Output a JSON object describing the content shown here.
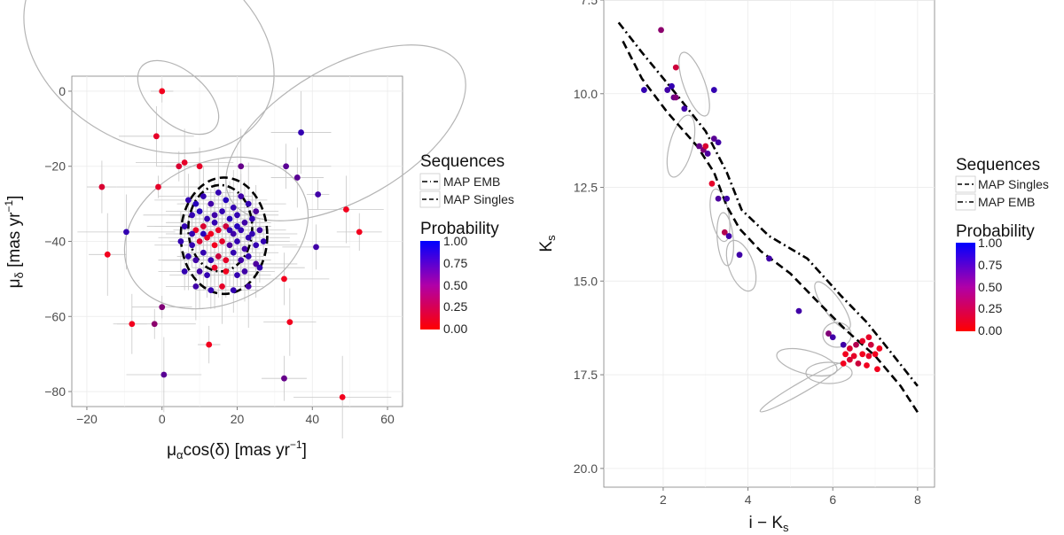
{
  "chart_data": [
    {
      "type": "scatter",
      "xlabel": "μαcos(δ) [mas yr−1]",
      "ylabel": "μδ [mas yr−1]",
      "xlim": [
        -24,
        64
      ],
      "ylim": [
        -84,
        4
      ],
      "x_ticks": [
        -20,
        0,
        20,
        40,
        60
      ],
      "y_ticks": [
        0,
        -20,
        -40,
        -60,
        -80
      ],
      "x_tick_labels": [
        "−20",
        "0",
        "20",
        "40",
        "60"
      ],
      "y_tick_labels": [
        "0",
        "−20",
        "−40",
        "−60",
        "−80"
      ],
      "grid": true,
      "legend_sequences": {
        "title": "Sequences",
        "items": [
          "MAP EMB",
          "MAP Singles"
        ]
      },
      "legend_probability": {
        "title": "Probability",
        "labels": [
          "1.00",
          "0.75",
          "0.50",
          "0.25",
          "0.00"
        ],
        "low_color": "#ff0000",
        "high_color": "#0000ff"
      },
      "sequences": [
        {
          "name": "MAP EMB",
          "cx": 15.5,
          "cy": -36.5,
          "rx": 8.5,
          "ry": 11.5
        },
        {
          "name": "MAP Singles",
          "cx": 16.5,
          "cy": -38.5,
          "rx": 11.5,
          "ry": 15.5
        }
      ],
      "points": [
        {
          "x": 0,
          "y": 0,
          "p": 0.05
        },
        {
          "x": -1.5,
          "y": -12,
          "p": 0.1
        },
        {
          "x": 4.5,
          "y": -20,
          "p": 0.15
        },
        {
          "x": 6,
          "y": -19,
          "p": 0.1
        },
        {
          "x": 10,
          "y": -20,
          "p": 0.1
        },
        {
          "x": 21,
          "y": -20,
          "p": 0.6
        },
        {
          "x": 33,
          "y": -20,
          "p": 0.65
        },
        {
          "x": 37,
          "y": -11,
          "p": 0.8
        },
        {
          "x": -16,
          "y": -25.5,
          "p": 0.15
        },
        {
          "x": -1,
          "y": -25.5,
          "p": 0.1
        },
        {
          "x": 36,
          "y": -23,
          "p": 0.65
        },
        {
          "x": 41.5,
          "y": -27.5,
          "p": 0.75
        },
        {
          "x": 49,
          "y": -31.5,
          "p": 0.05
        },
        {
          "x": 52.5,
          "y": -37.5,
          "p": 0.05
        },
        {
          "x": -9.5,
          "y": -37.5,
          "p": 0.8
        },
        {
          "x": 41,
          "y": -41.5,
          "p": 0.75
        },
        {
          "x": -14.5,
          "y": -43.5,
          "p": 0.05
        },
        {
          "x": 32.5,
          "y": -50,
          "p": 0.05
        },
        {
          "x": 0,
          "y": -57.5,
          "p": 0.5
        },
        {
          "x": -8,
          "y": -62,
          "p": 0.05
        },
        {
          "x": -2,
          "y": -62,
          "p": 0.45
        },
        {
          "x": 34,
          "y": -61.5,
          "p": 0.05
        },
        {
          "x": 12.5,
          "y": -67.5,
          "p": 0.05
        },
        {
          "x": 0.5,
          "y": -75.5,
          "p": 0.65
        },
        {
          "x": 32.5,
          "y": -76.5,
          "p": 0.6
        },
        {
          "x": 48,
          "y": -81.5,
          "p": 0.05
        },
        {
          "x": 7,
          "y": -29,
          "p": 0.8
        },
        {
          "x": 9,
          "y": -30,
          "p": 0.85
        },
        {
          "x": 11,
          "y": -28,
          "p": 0.8
        },
        {
          "x": 13,
          "y": -30,
          "p": 0.75
        },
        {
          "x": 15,
          "y": -27,
          "p": 0.8
        },
        {
          "x": 17,
          "y": -29,
          "p": 0.85
        },
        {
          "x": 19,
          "y": -31,
          "p": 0.8
        },
        {
          "x": 21,
          "y": -28,
          "p": 0.75
        },
        {
          "x": 23,
          "y": -30,
          "p": 0.8
        },
        {
          "x": 25,
          "y": -32,
          "p": 0.7
        },
        {
          "x": 8,
          "y": -33,
          "p": 0.8
        },
        {
          "x": 10,
          "y": -32,
          "p": 0.85
        },
        {
          "x": 12,
          "y": -34,
          "p": 0.8
        },
        {
          "x": 14,
          "y": -33,
          "p": 0.75
        },
        {
          "x": 16,
          "y": -32,
          "p": 0.8
        },
        {
          "x": 18,
          "y": -34,
          "p": 0.85
        },
        {
          "x": 20,
          "y": -33,
          "p": 0.8
        },
        {
          "x": 22,
          "y": -35,
          "p": 0.75
        },
        {
          "x": 24,
          "y": -34,
          "p": 0.8
        },
        {
          "x": 6,
          "y": -36,
          "p": 0.8
        },
        {
          "x": 9,
          "y": -37,
          "p": 0.1
        },
        {
          "x": 11,
          "y": -36,
          "p": 0.15
        },
        {
          "x": 13,
          "y": -38,
          "p": 0.05
        },
        {
          "x": 15,
          "y": -37,
          "p": 0.1
        },
        {
          "x": 17,
          "y": -36,
          "p": 0.2
        },
        {
          "x": 19,
          "y": -38,
          "p": 0.75
        },
        {
          "x": 21,
          "y": -37,
          "p": 0.8
        },
        {
          "x": 23,
          "y": -39,
          "p": 0.8
        },
        {
          "x": 26,
          "y": -37,
          "p": 0.75
        },
        {
          "x": 5,
          "y": -40,
          "p": 0.8
        },
        {
          "x": 8,
          "y": -41,
          "p": 0.8
        },
        {
          "x": 10,
          "y": -40,
          "p": 0.15
        },
        {
          "x": 12,
          "y": -39,
          "p": 0.1
        },
        {
          "x": 14,
          "y": -41,
          "p": 0.05
        },
        {
          "x": 16,
          "y": -40,
          "p": 0.1
        },
        {
          "x": 18,
          "y": -41,
          "p": 0.7
        },
        {
          "x": 20,
          "y": -40,
          "p": 0.8
        },
        {
          "x": 22,
          "y": -42,
          "p": 0.75
        },
        {
          "x": 25,
          "y": -41,
          "p": 0.8
        },
        {
          "x": 27,
          "y": -40,
          "p": 0.8
        },
        {
          "x": 7,
          "y": -44,
          "p": 0.8
        },
        {
          "x": 9,
          "y": -45,
          "p": 0.75
        },
        {
          "x": 11,
          "y": -43,
          "p": 0.8
        },
        {
          "x": 13,
          "y": -45,
          "p": 0.8
        },
        {
          "x": 15,
          "y": -44,
          "p": 0.2
        },
        {
          "x": 17,
          "y": -45,
          "p": 0.1
        },
        {
          "x": 19,
          "y": -43,
          "p": 0.8
        },
        {
          "x": 21,
          "y": -45,
          "p": 0.75
        },
        {
          "x": 23,
          "y": -44,
          "p": 0.8
        },
        {
          "x": 25,
          "y": -46,
          "p": 0.7
        },
        {
          "x": 6,
          "y": -48,
          "p": 0.8
        },
        {
          "x": 10,
          "y": -48,
          "p": 0.75
        },
        {
          "x": 12,
          "y": -49,
          "p": 0.8
        },
        {
          "x": 14,
          "y": -47,
          "p": 0.1
        },
        {
          "x": 17,
          "y": -48,
          "p": 0.05
        },
        {
          "x": 20,
          "y": -49,
          "p": 0.8
        },
        {
          "x": 22,
          "y": -48,
          "p": 0.75
        },
        {
          "x": 26,
          "y": -47,
          "p": 0.8
        },
        {
          "x": 9,
          "y": -52,
          "p": 0.75
        },
        {
          "x": 13,
          "y": -53,
          "p": 0.8
        },
        {
          "x": 16,
          "y": -52,
          "p": 0.1
        },
        {
          "x": 19,
          "y": -53,
          "p": 0.8
        },
        {
          "x": 23,
          "y": -52,
          "p": 0.75
        },
        {
          "x": 11,
          "y": -38,
          "p": 0.85
        },
        {
          "x": 18,
          "y": -37,
          "p": 0.8
        },
        {
          "x": 14,
          "y": -35,
          "p": 0.8
        },
        {
          "x": 20,
          "y": -36,
          "p": 0.85
        },
        {
          "x": 8,
          "y": -38,
          "p": 0.8
        },
        {
          "x": 24,
          "y": -38,
          "p": 0.8
        }
      ]
    },
    {
      "type": "scatter",
      "xlabel": "i−Ks",
      "ylabel": "Ks",
      "xlim": [
        0.6,
        8.4
      ],
      "ylim": [
        20.5,
        7.5
      ],
      "x_ticks": [
        2,
        4,
        6,
        8
      ],
      "y_ticks": [
        7.5,
        10,
        12.5,
        15,
        17.5,
        20
      ],
      "x_tick_labels": [
        "2",
        "4",
        "6",
        "8"
      ],
      "y_tick_labels": [
        "7.5",
        "10.0",
        "12.5",
        "15.0",
        "17.5",
        "20.0"
      ],
      "grid": true,
      "legend_sequences": {
        "title": "Sequences",
        "items": [
          "MAP Singles",
          "MAP EMB"
        ]
      },
      "legend_probability": {
        "title": "Probability",
        "labels": [
          "1.00",
          "0.75",
          "0.50",
          "0.25",
          "0.00"
        ],
        "low_color": "#ff0000",
        "high_color": "#0000ff"
      },
      "sequences": [
        {
          "name": "MAP Singles",
          "points": [
            [
              1.05,
              8.6
            ],
            [
              1.5,
              9.6
            ],
            [
              2.1,
              10.5
            ],
            [
              2.8,
              11.4
            ],
            [
              3.2,
              12.1
            ],
            [
              3.5,
              13.0
            ],
            [
              3.8,
              13.6
            ],
            [
              4.3,
              14.2
            ],
            [
              5.0,
              14.8
            ],
            [
              5.6,
              15.5
            ],
            [
              6.3,
              16.3
            ],
            [
              7.0,
              17.0
            ],
            [
              7.6,
              17.8
            ],
            [
              8.0,
              18.5
            ]
          ]
        },
        {
          "name": "MAP EMB",
          "points": [
            [
              0.95,
              8.1
            ],
            [
              1.5,
              8.9
            ],
            [
              2.3,
              10.0
            ],
            [
              3.0,
              11.0
            ],
            [
              3.5,
              12.1
            ],
            [
              3.85,
              13.1
            ],
            [
              4.5,
              13.8
            ],
            [
              5.4,
              14.4
            ],
            [
              6.2,
              15.4
            ],
            [
              6.8,
              16.1
            ],
            [
              7.3,
              16.8
            ],
            [
              8.0,
              17.8
            ]
          ]
        }
      ],
      "points": [
        {
          "x": 1.95,
          "y": 8.3,
          "p": 0.45
        },
        {
          "x": 2.3,
          "y": 9.3,
          "p": 0.2
        },
        {
          "x": 1.55,
          "y": 9.9,
          "p": 0.8
        },
        {
          "x": 2.1,
          "y": 9.9,
          "p": 0.75
        },
        {
          "x": 2.2,
          "y": 9.8,
          "p": 0.8
        },
        {
          "x": 2.25,
          "y": 10.1,
          "p": 0.6
        },
        {
          "x": 2.3,
          "y": 10.1,
          "p": 0.5
        },
        {
          "x": 3.2,
          "y": 9.9,
          "p": 0.8
        },
        {
          "x": 2.5,
          "y": 10.4,
          "p": 0.75
        },
        {
          "x": 2.85,
          "y": 11.4,
          "p": 0.6
        },
        {
          "x": 2.95,
          "y": 11.5,
          "p": 0.5
        },
        {
          "x": 3.0,
          "y": 11.4,
          "p": 0.15
        },
        {
          "x": 3.05,
          "y": 11.6,
          "p": 0.7
        },
        {
          "x": 3.2,
          "y": 11.2,
          "p": 0.65
        },
        {
          "x": 3.3,
          "y": 11.3,
          "p": 0.75
        },
        {
          "x": 3.15,
          "y": 12.4,
          "p": 0.1
        },
        {
          "x": 3.3,
          "y": 12.8,
          "p": 0.7
        },
        {
          "x": 3.5,
          "y": 12.8,
          "p": 0.75
        },
        {
          "x": 3.45,
          "y": 13.7,
          "p": 0.3
        },
        {
          "x": 3.55,
          "y": 13.8,
          "p": 0.75
        },
        {
          "x": 3.8,
          "y": 14.3,
          "p": 0.75
        },
        {
          "x": 4.5,
          "y": 14.4,
          "p": 0.75
        },
        {
          "x": 5.2,
          "y": 15.8,
          "p": 0.75
        },
        {
          "x": 5.9,
          "y": 16.4,
          "p": 0.5
        },
        {
          "x": 6.0,
          "y": 16.5,
          "p": 0.75
        },
        {
          "x": 6.25,
          "y": 16.7,
          "p": 0.75
        },
        {
          "x": 6.4,
          "y": 16.8,
          "p": 0.15
        },
        {
          "x": 6.55,
          "y": 16.7,
          "p": 0.3
        },
        {
          "x": 6.7,
          "y": 16.6,
          "p": 0.1
        },
        {
          "x": 6.85,
          "y": 16.5,
          "p": 0.1
        },
        {
          "x": 6.9,
          "y": 16.7,
          "p": 0.2
        },
        {
          "x": 6.3,
          "y": 16.95,
          "p": 0.05
        },
        {
          "x": 6.5,
          "y": 17.0,
          "p": 0.1
        },
        {
          "x": 6.7,
          "y": 16.95,
          "p": 0.05
        },
        {
          "x": 6.85,
          "y": 17.0,
          "p": 0.1
        },
        {
          "x": 7.0,
          "y": 16.95,
          "p": 0.05
        },
        {
          "x": 6.6,
          "y": 17.2,
          "p": 0.2
        },
        {
          "x": 6.8,
          "y": 17.25,
          "p": 0.05
        },
        {
          "x": 6.25,
          "y": 17.2,
          "p": 0.05
        },
        {
          "x": 7.05,
          "y": 17.35,
          "p": 0.05
        },
        {
          "x": 6.4,
          "y": 17.1,
          "p": 0.15
        },
        {
          "x": 7.1,
          "y": 16.8,
          "p": 0.05
        }
      ]
    }
  ]
}
